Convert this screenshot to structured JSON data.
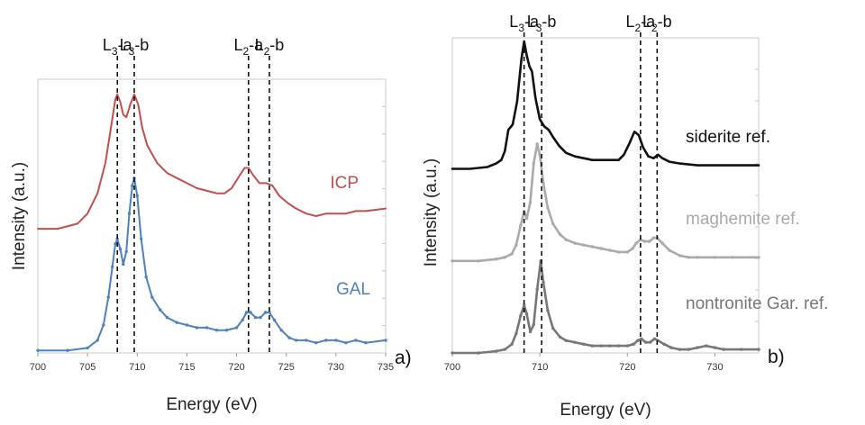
{
  "chart_data": [
    {
      "type": "line",
      "panel_label": "a)",
      "xlabel": "Energy (eV)",
      "ylabel": "Intensity (a.u.)",
      "xlim": [
        700,
        735
      ],
      "x_ticks": [
        700,
        705,
        710,
        715,
        720,
        725,
        730,
        735
      ],
      "y_tick_labels": "none",
      "grid": false,
      "peak_lines": [
        {
          "label_main": "L",
          "label_sub": "3",
          "label_tail": "-a",
          "x": 708.0
        },
        {
          "label_main": "L",
          "label_sub": "3",
          "label_tail": "-b",
          "x": 709.7
        },
        {
          "label_main": "L",
          "label_sub": "2",
          "label_tail": "-a",
          "x": 721.2
        },
        {
          "label_main": "L",
          "label_sub": "2",
          "label_tail": "-b",
          "x": 723.3
        }
      ],
      "series": [
        {
          "name": "ICP",
          "color": "#c0504d",
          "marker": "none",
          "offset": 0.48,
          "points": [
            [
              700,
              0.01
            ],
            [
              702,
              0.01
            ],
            [
              704,
              0.03
            ],
            [
              705,
              0.07
            ],
            [
              706,
              0.15
            ],
            [
              706.8,
              0.27
            ],
            [
              707.4,
              0.42
            ],
            [
              707.8,
              0.52
            ],
            [
              708.0,
              0.54
            ],
            [
              708.3,
              0.51
            ],
            [
              708.6,
              0.46
            ],
            [
              708.9,
              0.45
            ],
            [
              709.3,
              0.5
            ],
            [
              709.7,
              0.54
            ],
            [
              710.1,
              0.5
            ],
            [
              710.5,
              0.41
            ],
            [
              711,
              0.34
            ],
            [
              712,
              0.27
            ],
            [
              713,
              0.23
            ],
            [
              714,
              0.21
            ],
            [
              715,
              0.19
            ],
            [
              716,
              0.17
            ],
            [
              717,
              0.16
            ],
            [
              718,
              0.15
            ],
            [
              718.8,
              0.15
            ],
            [
              719.5,
              0.17
            ],
            [
              720.3,
              0.22
            ],
            [
              720.8,
              0.25
            ],
            [
              721.2,
              0.25
            ],
            [
              721.7,
              0.22
            ],
            [
              722.3,
              0.19
            ],
            [
              723.0,
              0.19
            ],
            [
              723.6,
              0.18
            ],
            [
              724.3,
              0.14
            ],
            [
              725.2,
              0.11
            ],
            [
              726,
              0.09
            ],
            [
              727,
              0.07
            ],
            [
              728,
              0.06
            ],
            [
              729,
              0.07
            ],
            [
              730,
              0.07
            ],
            [
              731,
              0.07
            ],
            [
              732,
              0.08
            ],
            [
              733,
              0.08
            ],
            [
              735,
              0.09
            ]
          ]
        },
        {
          "name": "GAL",
          "color": "#4f81bd",
          "marker": "dot",
          "offset": 0,
          "points": [
            [
              700,
              0.01
            ],
            [
              703,
              0.01
            ],
            [
              705,
              0.02
            ],
            [
              706,
              0.05
            ],
            [
              706.6,
              0.11
            ],
            [
              707.1,
              0.22
            ],
            [
              707.5,
              0.34
            ],
            [
              707.8,
              0.43
            ],
            [
              708.0,
              0.45
            ],
            [
              708.3,
              0.41
            ],
            [
              708.6,
              0.35
            ],
            [
              708.9,
              0.4
            ],
            [
              709.2,
              0.55
            ],
            [
              709.5,
              0.66
            ],
            [
              709.7,
              0.69
            ],
            [
              710.0,
              0.62
            ],
            [
              710.4,
              0.45
            ],
            [
              710.9,
              0.3
            ],
            [
              711.5,
              0.22
            ],
            [
              712.3,
              0.17
            ],
            [
              713,
              0.14
            ],
            [
              714,
              0.12
            ],
            [
              715,
              0.11
            ],
            [
              716,
              0.1
            ],
            [
              717,
              0.1
            ],
            [
              718,
              0.09
            ],
            [
              719,
              0.09
            ],
            [
              720,
              0.1
            ],
            [
              720.6,
              0.13
            ],
            [
              721.0,
              0.16
            ],
            [
              721.4,
              0.16
            ],
            [
              721.9,
              0.14
            ],
            [
              722.4,
              0.14
            ],
            [
              722.9,
              0.16
            ],
            [
              723.3,
              0.16
            ],
            [
              723.8,
              0.13
            ],
            [
              724.5,
              0.09
            ],
            [
              725.3,
              0.06
            ],
            [
              726,
              0.05
            ],
            [
              727,
              0.05
            ],
            [
              728,
              0.04
            ],
            [
              729,
              0.05
            ],
            [
              730,
              0.05
            ],
            [
              731,
              0.04
            ],
            [
              732,
              0.05
            ],
            [
              733,
              0.04
            ],
            [
              735,
              0.05
            ]
          ]
        }
      ]
    },
    {
      "type": "line",
      "panel_label": "b)",
      "xlabel": "Energy (eV)",
      "ylabel": "Intensity (a.u.)",
      "xlim": [
        700,
        735
      ],
      "x_ticks": [
        700,
        710,
        720,
        730
      ],
      "y_tick_labels": "none",
      "grid": false,
      "peak_lines": [
        {
          "label_main": "L",
          "label_sub": "3",
          "label_tail": "-a",
          "x": 708.2
        },
        {
          "label_main": "L",
          "label_sub": "3",
          "label_tail": "-b",
          "x": 710.2
        },
        {
          "label_main": "L",
          "label_sub": "2",
          "label_tail": "-a",
          "x": 721.5
        },
        {
          "label_main": "L",
          "label_sub": "2",
          "label_tail": "-b",
          "x": 723.4
        }
      ],
      "series": [
        {
          "name": "siderite ref.",
          "color": "#111111",
          "marker": "none",
          "offset": 1.04,
          "points": [
            [
              700,
              0.0
            ],
            [
              702,
              0.0
            ],
            [
              704,
              0.01
            ],
            [
              705,
              0.03
            ],
            [
              705.6,
              0.05
            ],
            [
              706.0,
              0.1
            ],
            [
              706.4,
              0.22
            ],
            [
              706.9,
              0.25
            ],
            [
              707.4,
              0.38
            ],
            [
              707.9,
              0.62
            ],
            [
              708.2,
              0.72
            ],
            [
              708.5,
              0.64
            ],
            [
              708.8,
              0.58
            ],
            [
              709.1,
              0.55
            ],
            [
              709.5,
              0.4
            ],
            [
              710.0,
              0.28
            ],
            [
              710.5,
              0.24
            ],
            [
              711.0,
              0.22
            ],
            [
              711.5,
              0.18
            ],
            [
              712.2,
              0.13
            ],
            [
              713,
              0.09
            ],
            [
              714,
              0.07
            ],
            [
              715,
              0.06
            ],
            [
              716,
              0.05
            ],
            [
              717,
              0.05
            ],
            [
              718,
              0.05
            ],
            [
              719,
              0.05
            ],
            [
              719.6,
              0.08
            ],
            [
              720.2,
              0.14
            ],
            [
              720.8,
              0.21
            ],
            [
              721.3,
              0.19
            ],
            [
              721.8,
              0.12
            ],
            [
              722.4,
              0.07
            ],
            [
              723.0,
              0.06
            ],
            [
              723.5,
              0.08
            ],
            [
              724.0,
              0.06
            ],
            [
              724.8,
              0.04
            ],
            [
              726,
              0.03
            ],
            [
              728,
              0.02
            ],
            [
              730,
              0.02
            ],
            [
              732,
              0.02
            ],
            [
              735,
              0.02
            ]
          ]
        },
        {
          "name": "maghemite ref.",
          "color": "#aaaaaa",
          "marker": "dot",
          "offset": 0.52,
          "points": [
            [
              700,
              0.0
            ],
            [
              703,
              0.0
            ],
            [
              705,
              0.01
            ],
            [
              706,
              0.02
            ],
            [
              706.8,
              0.04
            ],
            [
              707.3,
              0.09
            ],
            [
              707.8,
              0.2
            ],
            [
              708.2,
              0.28
            ],
            [
              708.5,
              0.24
            ],
            [
              708.9,
              0.33
            ],
            [
              709.3,
              0.55
            ],
            [
              709.7,
              0.66
            ],
            [
              710.0,
              0.6
            ],
            [
              710.4,
              0.44
            ],
            [
              710.9,
              0.3
            ],
            [
              711.5,
              0.21
            ],
            [
              712.3,
              0.15
            ],
            [
              713,
              0.12
            ],
            [
              714,
              0.1
            ],
            [
              715,
              0.09
            ],
            [
              716,
              0.08
            ],
            [
              717,
              0.07
            ],
            [
              718,
              0.06
            ],
            [
              719,
              0.05
            ],
            [
              720,
              0.05
            ],
            [
              720.6,
              0.07
            ],
            [
              721.0,
              0.1
            ],
            [
              721.5,
              0.12
            ],
            [
              722.0,
              0.11
            ],
            [
              722.5,
              0.11
            ],
            [
              723.0,
              0.13
            ],
            [
              723.4,
              0.13
            ],
            [
              724.0,
              0.1
            ],
            [
              724.8,
              0.06
            ],
            [
              726,
              0.03
            ],
            [
              727,
              0.02
            ],
            [
              728,
              0.02
            ],
            [
              730,
              0.02
            ],
            [
              732,
              0.02
            ],
            [
              735,
              0.02
            ]
          ]
        },
        {
          "name": "nontronite Gar. ref.",
          "color": "#777777",
          "marker": "dot",
          "offset": 0.0,
          "points": [
            [
              700,
              0.0
            ],
            [
              703,
              0.0
            ],
            [
              705,
              0.01
            ],
            [
              706,
              0.02
            ],
            [
              706.8,
              0.05
            ],
            [
              707.3,
              0.11
            ],
            [
              707.8,
              0.21
            ],
            [
              708.2,
              0.27
            ],
            [
              708.5,
              0.22
            ],
            [
              708.9,
              0.12
            ],
            [
              709.3,
              0.16
            ],
            [
              709.7,
              0.36
            ],
            [
              710.1,
              0.52
            ],
            [
              710.4,
              0.4
            ],
            [
              710.9,
              0.24
            ],
            [
              711.5,
              0.14
            ],
            [
              712.3,
              0.09
            ],
            [
              713,
              0.07
            ],
            [
              714,
              0.06
            ],
            [
              715,
              0.05
            ],
            [
              716,
              0.04
            ],
            [
              717,
              0.04
            ],
            [
              718,
              0.04
            ],
            [
              719,
              0.04
            ],
            [
              720,
              0.04
            ],
            [
              720.7,
              0.05
            ],
            [
              721.2,
              0.07
            ],
            [
              721.6,
              0.08
            ],
            [
              722.1,
              0.06
            ],
            [
              722.6,
              0.06
            ],
            [
              723.1,
              0.08
            ],
            [
              723.5,
              0.07
            ],
            [
              724.2,
              0.05
            ],
            [
              725,
              0.03
            ],
            [
              726,
              0.02
            ],
            [
              727,
              0.02
            ],
            [
              728,
              0.03
            ],
            [
              729,
              0.04
            ],
            [
              730,
              0.03
            ],
            [
              731,
              0.02
            ],
            [
              733,
              0.02
            ],
            [
              735,
              0.02
            ]
          ]
        }
      ]
    }
  ]
}
